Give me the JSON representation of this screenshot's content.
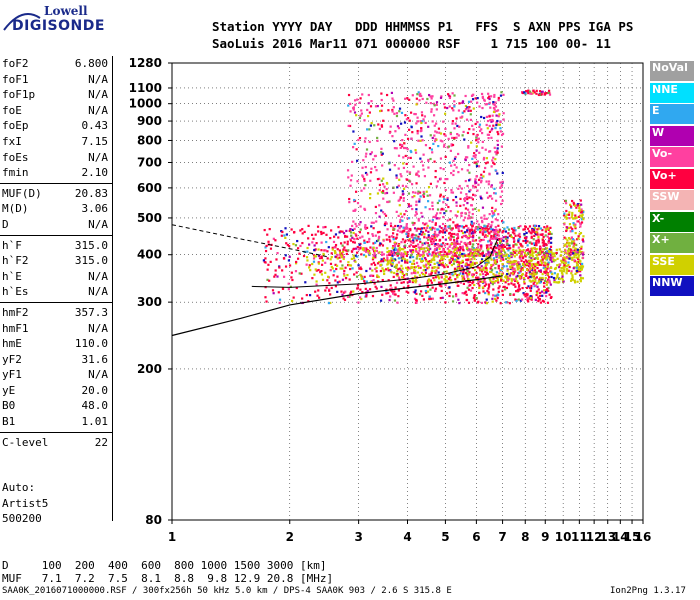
{
  "logo": {
    "line1": "Lowell",
    "line2": "DIGISONDE"
  },
  "header": {
    "line1": "Station YYYY DAY   DDD HHMMSS P1   FFS  S AXN PPS IGA PS",
    "line2": "SaoLuis 2016 Mar11 071 000000 RSF    1 715 100 00- 11"
  },
  "params": {
    "group1": [
      {
        "k": "foF2",
        "v": "6.800"
      },
      {
        "k": "foF1",
        "v": "N/A"
      },
      {
        "k": "foF1p",
        "v": "N/A"
      },
      {
        "k": "foE",
        "v": "N/A"
      },
      {
        "k": "foEp",
        "v": "0.43"
      },
      {
        "k": "fxI",
        "v": "7.15"
      },
      {
        "k": "foEs",
        "v": "N/A"
      },
      {
        "k": "fmin",
        "v": "2.10"
      }
    ],
    "group2": [
      {
        "k": "MUF(D)",
        "v": "20.83"
      },
      {
        "k": "M(D)",
        "v": "3.06"
      },
      {
        "k": "D",
        "v": "N/A"
      }
    ],
    "group3": [
      {
        "k": "h`F",
        "v": "315.0"
      },
      {
        "k": "h`F2",
        "v": "315.0"
      },
      {
        "k": "h`E",
        "v": "N/A"
      },
      {
        "k": "h`Es",
        "v": "N/A"
      }
    ],
    "group4": [
      {
        "k": "hmF2",
        "v": "357.3"
      },
      {
        "k": "hmF1",
        "v": "N/A"
      },
      {
        "k": "hmE",
        "v": "110.0"
      },
      {
        "k": "yF2",
        "v": "31.6"
      },
      {
        "k": "yF1",
        "v": "N/A"
      },
      {
        "k": "yE",
        "v": "20.0"
      },
      {
        "k": "B0",
        "v": "48.0"
      },
      {
        "k": "B1",
        "v": "1.01"
      }
    ],
    "group5": [
      {
        "k": "C-level",
        "v": "22"
      }
    ]
  },
  "auto": {
    "l1": "Auto:",
    "l2": "Artist5",
    "l3": "500200"
  },
  "legend": [
    {
      "label": "NoVal",
      "color": "#a0a0a0"
    },
    {
      "label": "NNE",
      "color": "#00e0ff"
    },
    {
      "label": "E",
      "color": "#30a8f0"
    },
    {
      "label": "W",
      "color": "#b000b0"
    },
    {
      "label": "Vo-",
      "color": "#ff40a0"
    },
    {
      "label": "Vo+",
      "color": "#ff0040"
    },
    {
      "label": "SSW",
      "color": "#f4b4b4"
    },
    {
      "label": "X-",
      "color": "#008000"
    },
    {
      "label": "X+",
      "color": "#70b040"
    },
    {
      "label": "SSE",
      "color": "#d0d000"
    },
    {
      "label": "NNW",
      "color": "#1010c0"
    }
  ],
  "table": {
    "row1": "D     100  200  400  600  800 1000 1500 3000 [km]",
    "row2": "MUF   7.1  7.2  7.5  8.1  8.8  9.8 12.9 20.8 [MHz]"
  },
  "footer": {
    "left": "SAA0K_2016071000000.RSF / 300fx256h 50 kHz 5.0 km / DPS-4 SAA0K 903 / 2.6 S 315.8 E",
    "right": "Ion2Png 1.3.17"
  },
  "chart_data": {
    "type": "scatter",
    "xlim": [
      1,
      16
    ],
    "ylim": [
      80,
      1280
    ],
    "x_scale": "log",
    "y_scale": "log",
    "x_ticks": [
      1,
      2,
      3,
      4,
      5,
      6,
      7,
      8,
      9,
      10,
      11,
      12,
      13,
      14,
      15,
      16
    ],
    "y_ticks": [
      80,
      200,
      300,
      400,
      500,
      600,
      700,
      800,
      900,
      1000,
      1100,
      1280
    ],
    "grid": "dotted",
    "legend_position": "right",
    "clusters": [
      {
        "name": "F-trace main",
        "x_range": [
          1.7,
          9.3
        ],
        "y_range": [
          300,
          480
        ],
        "series": "Vo+"
      },
      {
        "name": "spread-F columns",
        "x_range": [
          2.8,
          7.0
        ],
        "y_range": [
          400,
          1080
        ],
        "series": "Vo-"
      },
      {
        "name": "X trace",
        "x_range": [
          2.2,
          11.2
        ],
        "y_range": [
          340,
          420
        ],
        "series": "SSE"
      },
      {
        "name": "upper trace",
        "x_range": [
          7.8,
          9.2
        ],
        "y_range": [
          1060,
          1090
        ],
        "series": "Vo+"
      },
      {
        "name": "high freq echoes",
        "x_range": [
          10.0,
          11.2
        ],
        "y_range": [
          370,
          560
        ],
        "series": "SSE"
      }
    ],
    "profile_curve": [
      {
        "x": 1.0,
        "y": 245
      },
      {
        "x": 1.5,
        "y": 272
      },
      {
        "x": 2.0,
        "y": 295
      },
      {
        "x": 3.0,
        "y": 316
      },
      {
        "x": 4.0,
        "y": 327
      },
      {
        "x": 5.0,
        "y": 336
      },
      {
        "x": 6.0,
        "y": 344
      },
      {
        "x": 7.0,
        "y": 352
      }
    ],
    "trace_curve": [
      {
        "x": 1.6,
        "y": 330
      },
      {
        "x": 2.0,
        "y": 328
      },
      {
        "x": 3.0,
        "y": 335
      },
      {
        "x": 4.0,
        "y": 345
      },
      {
        "x": 5.0,
        "y": 356
      },
      {
        "x": 6.0,
        "y": 372
      },
      {
        "x": 6.5,
        "y": 395
      },
      {
        "x": 6.8,
        "y": 440
      }
    ],
    "dashed_curve": [
      {
        "x": 1.0,
        "y": 480
      },
      {
        "x": 1.5,
        "y": 440
      },
      {
        "x": 2.0,
        "y": 415
      },
      {
        "x": 2.5,
        "y": 395
      }
    ]
  }
}
